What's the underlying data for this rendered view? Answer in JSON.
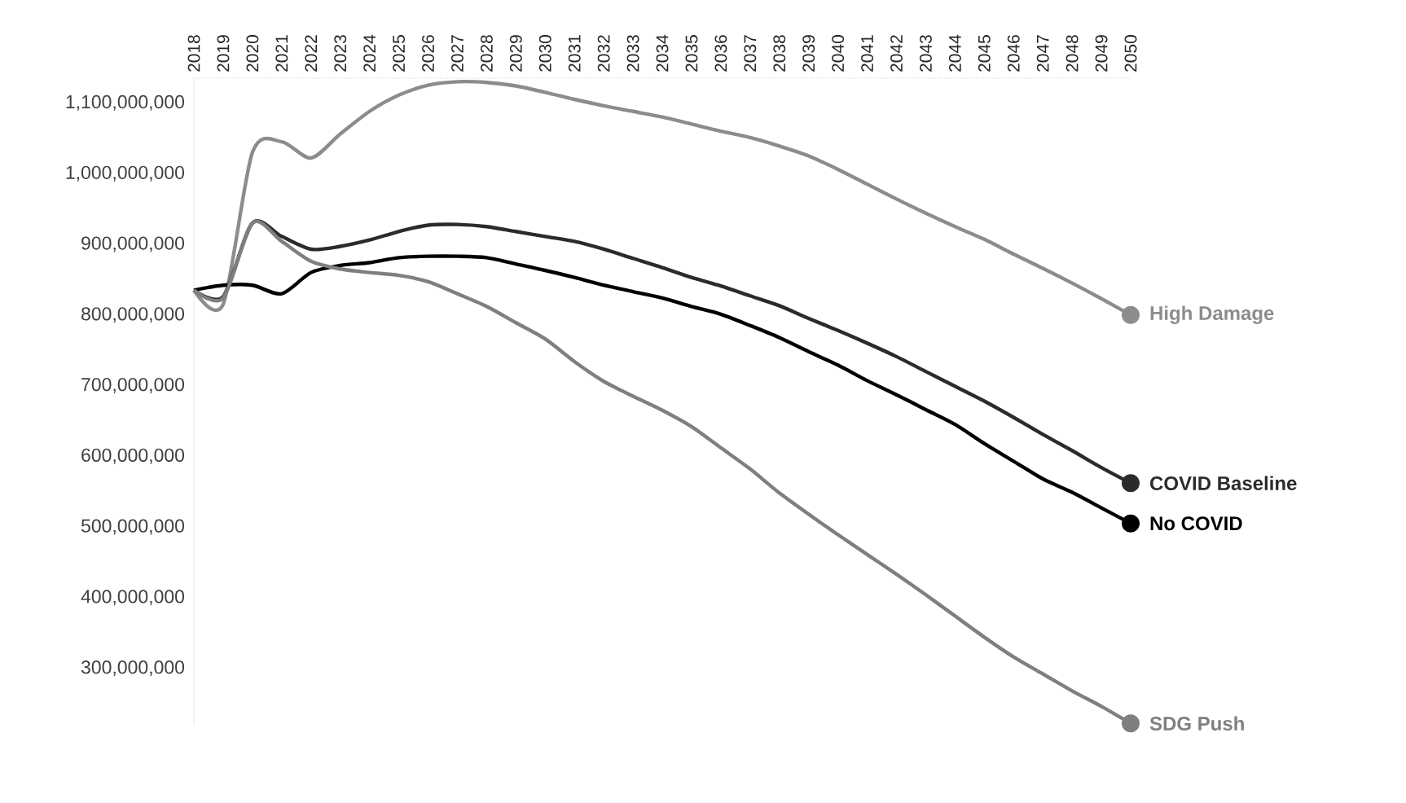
{
  "chart_data": {
    "type": "line",
    "categories": [
      "2018",
      "2019",
      "2020",
      "2021",
      "2022",
      "2023",
      "2024",
      "2025",
      "2026",
      "2027",
      "2028",
      "2029",
      "2030",
      "2031",
      "2032",
      "2033",
      "2034",
      "2035",
      "2036",
      "2037",
      "2038",
      "2039",
      "2040",
      "2041",
      "2042",
      "2043",
      "2044",
      "2045",
      "2046",
      "2047",
      "2048",
      "2049",
      "2050"
    ],
    "ylim": [
      220000000,
      1135000000
    ],
    "yticks": [
      {
        "value": 300000000,
        "label": "300,000,000"
      },
      {
        "value": 400000000,
        "label": "400,000,000"
      },
      {
        "value": 500000000,
        "label": "500,000,000"
      },
      {
        "value": 600000000,
        "label": "600,000,000"
      },
      {
        "value": 700000000,
        "label": "700,000,000"
      },
      {
        "value": 800000000,
        "label": "800,000,000"
      },
      {
        "value": 900000000,
        "label": "900,000,000"
      },
      {
        "value": 1000000000,
        "label": "1,000,000,000"
      },
      {
        "value": 1100000000,
        "label": "1,100,000,000"
      }
    ],
    "series": [
      {
        "name": "High Damage",
        "color": "#8c8c8c",
        "values": [
          835000000,
          815000000,
          1030000000,
          1045000000,
          1022000000,
          1056000000,
          1088000000,
          1111000000,
          1125000000,
          1130000000,
          1129000000,
          1124000000,
          1115000000,
          1105000000,
          1096000000,
          1088000000,
          1080000000,
          1070000000,
          1060000000,
          1051000000,
          1039000000,
          1025000000,
          1006000000,
          985000000,
          964000000,
          944000000,
          925000000,
          907000000,
          886000000,
          866000000,
          845000000,
          823000000,
          800000000
        ]
      },
      {
        "name": "COVID Baseline",
        "color": "#2b2b2b",
        "values": [
          835000000,
          826000000,
          930000000,
          911000000,
          893000000,
          897000000,
          906000000,
          918000000,
          927000000,
          928000000,
          925000000,
          918000000,
          911000000,
          904000000,
          893000000,
          880000000,
          867000000,
          853000000,
          841000000,
          827000000,
          813000000,
          795000000,
          778000000,
          760000000,
          741000000,
          720000000,
          699000000,
          678000000,
          655000000,
          631000000,
          608000000,
          584000000,
          562000000
        ]
      },
      {
        "name": "No COVID",
        "color": "#000000",
        "values": [
          835000000,
          842000000,
          842000000,
          830000000,
          860000000,
          870000000,
          874000000,
          881000000,
          883000000,
          883000000,
          881000000,
          872000000,
          863000000,
          853000000,
          842000000,
          833000000,
          824000000,
          812000000,
          801000000,
          785000000,
          768000000,
          748000000,
          729000000,
          707000000,
          687000000,
          666000000,
          645000000,
          618000000,
          593000000,
          568000000,
          549000000,
          527000000,
          505000000
        ]
      },
      {
        "name": "SDG Push",
        "color": "#7f7f7f",
        "values": [
          835000000,
          824000000,
          930000000,
          904000000,
          876000000,
          865000000,
          860000000,
          856000000,
          847000000,
          830000000,
          812000000,
          789000000,
          766000000,
          734000000,
          706000000,
          685000000,
          665000000,
          642000000,
          612000000,
          582000000,
          548000000,
          518000000,
          489000000,
          461000000,
          433000000,
          404000000,
          374000000,
          344000000,
          316000000,
          292000000,
          268000000,
          246000000,
          222000000
        ]
      }
    ]
  }
}
